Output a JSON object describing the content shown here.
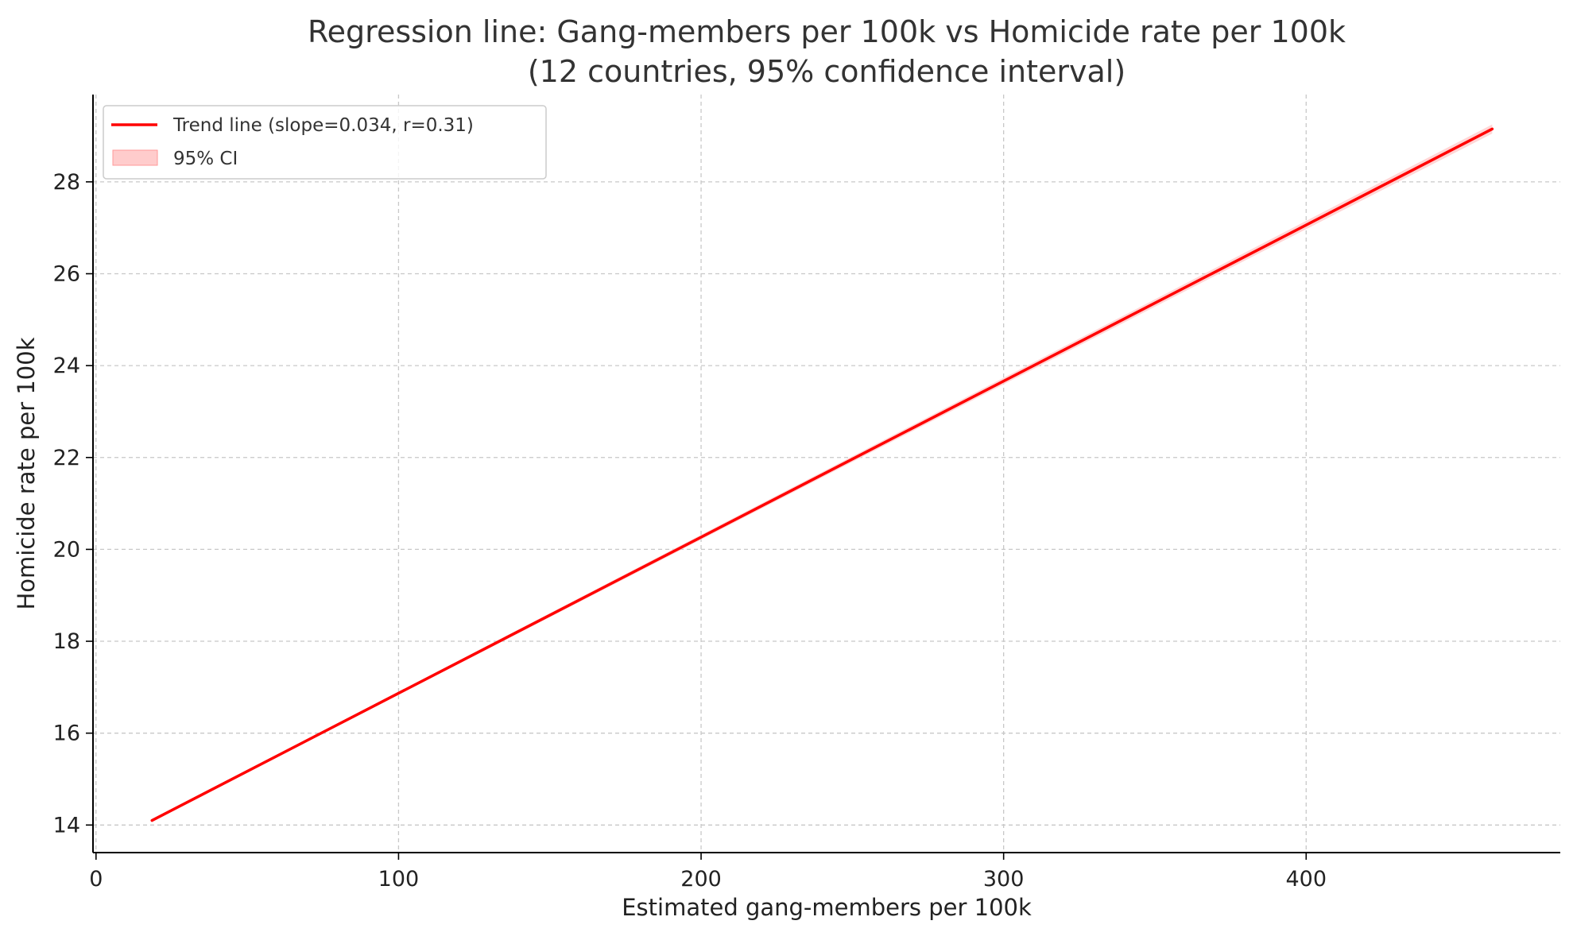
{
  "chart_data": {
    "type": "line",
    "title": "Regression line: Gang-members per 100k vs Homicide rate per 100k",
    "subtitle": "(12 countries, 95% confidence interval)",
    "xlabel": "Estimated gang-members per 100k",
    "ylabel": "Homicide rate per 100k",
    "xlim": [
      -1,
      484
    ],
    "ylim": [
      13.4,
      29.9
    ],
    "x_ticks": [
      0,
      100,
      200,
      300,
      400
    ],
    "y_ticks": [
      14,
      16,
      18,
      20,
      22,
      24,
      26,
      28
    ],
    "grid": true,
    "legend_position": "top-left",
    "series": [
      {
        "name": "Trend line (slope=0.034, r=0.31)",
        "kind": "line",
        "color": "#ff0000",
        "x": [
          18.5,
          461.5
        ],
        "y": [
          14.1,
          29.15
        ]
      },
      {
        "name": "95% CI",
        "kind": "band",
        "color": "#ffcccc",
        "x": [
          18.5,
          461.5
        ],
        "y_low": [
          14.08,
          29.05
        ],
        "y_high": [
          14.12,
          29.25
        ]
      }
    ]
  }
}
